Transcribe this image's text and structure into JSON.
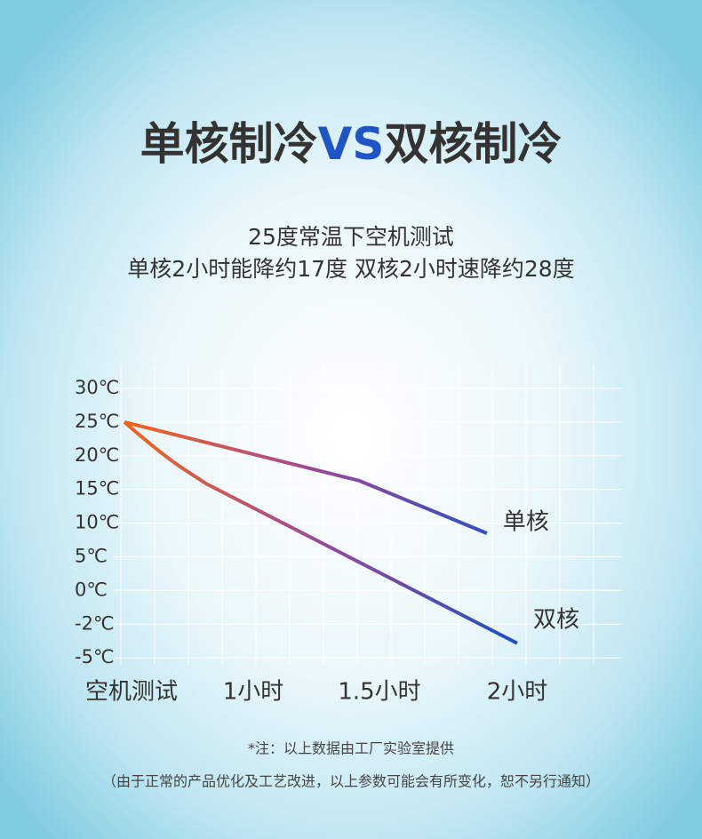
{
  "chart_data": {
    "type": "line",
    "title": [
      "单核制冷",
      "VS",
      "双核制冷"
    ],
    "subtitle": [
      "25度常温下空机测试",
      "单核2小时能降约17度  双核2小时速降约28度"
    ],
    "xticks": [
      {
        "value": 0,
        "label": "空机测试"
      },
      {
        "value": 1,
        "label": "1小时"
      },
      {
        "value": 1.5,
        "label": "1.5小时"
      },
      {
        "value": 2,
        "label": "2小时"
      }
    ],
    "yticks": [
      {
        "value": 30,
        "label": "30℃"
      },
      {
        "value": 25,
        "label": "25℃"
      },
      {
        "value": 20,
        "label": "20℃"
      },
      {
        "value": 15,
        "label": "15℃"
      },
      {
        "value": 10,
        "label": "10℃"
      },
      {
        "value": 5,
        "label": "5℃"
      },
      {
        "value": 0,
        "label": "0℃"
      },
      {
        "value": -2,
        "label": "-2℃"
      },
      {
        "value": -5,
        "label": "-5℃"
      }
    ],
    "grid": true,
    "gradient": [
      "#f4661c",
      "#9a4a9c",
      "#1c4fc4"
    ],
    "series": [
      {
        "name": "单核",
        "x": [
          0,
          1.42,
          1.89
        ],
        "values": [
          25,
          16.3,
          8.5
        ]
      },
      {
        "name": "双核",
        "x": [
          0,
          0.3,
          0.64,
          2
        ],
        "values": [
          25,
          20,
          15.8,
          -3.7
        ]
      }
    ],
    "notes": [
      "*注：以上数据由工厂实验室提供",
      "（由于正常的产品优化及工艺改进，以上参数可能会有所变化，恕不另行通知）"
    ]
  }
}
